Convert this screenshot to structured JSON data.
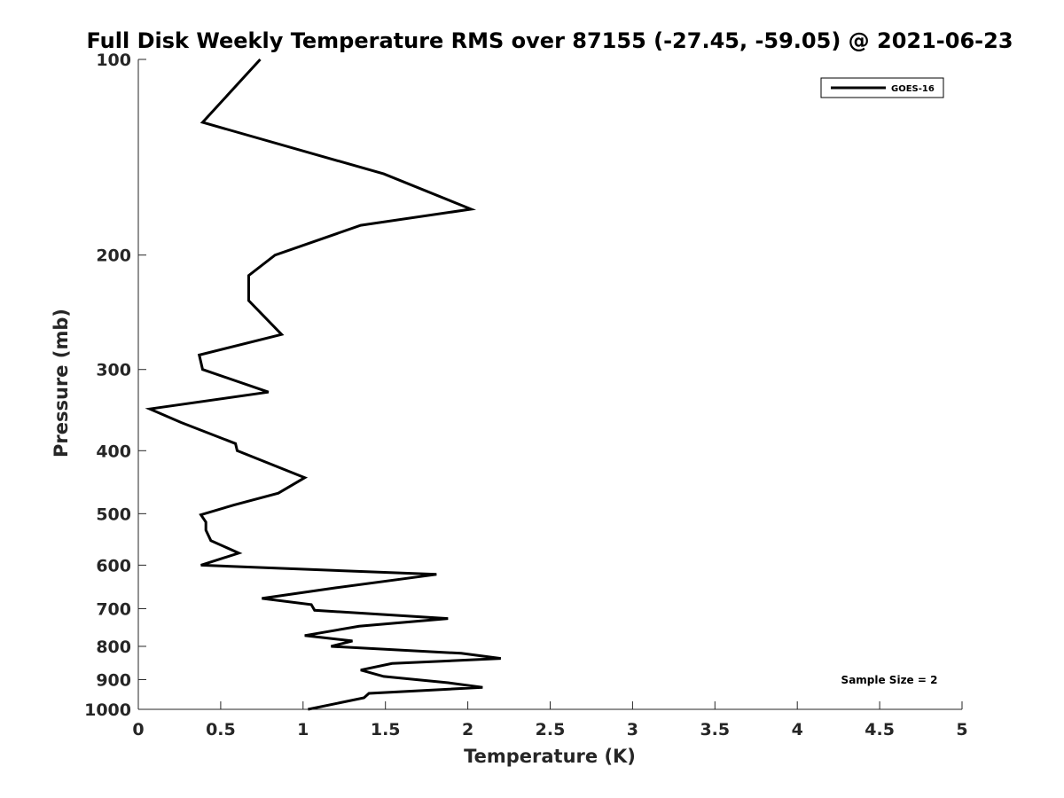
{
  "chart_data": {
    "type": "line",
    "title": "Full Disk Weekly Temperature RMS over 87155 (-27.45, -59.05) @ 2021-06-23",
    "xlabel": "Temperature (K)",
    "ylabel": "Pressure (mb)",
    "xlim": [
      0,
      5
    ],
    "ylim": [
      100,
      1000
    ],
    "y_scale": "log",
    "y_reversed": true,
    "x_ticks": [
      0,
      0.5,
      1,
      1.5,
      2,
      2.5,
      3,
      3.5,
      4,
      4.5,
      5
    ],
    "x_tick_labels": [
      "0",
      "0.5",
      "1",
      "1.5",
      "2",
      "2.5",
      "3",
      "3.5",
      "4",
      "4.5",
      "5"
    ],
    "y_ticks": [
      100,
      200,
      300,
      400,
      500,
      600,
      700,
      800,
      900,
      1000
    ],
    "y_tick_labels": [
      "100",
      "200",
      "300",
      "400",
      "500",
      "600",
      "700",
      "800",
      "900",
      "1000"
    ],
    "legend_position": "top-right",
    "annotation": "Sample Size = 2",
    "line_color": "#000000",
    "series": [
      {
        "name": "GOES-16",
        "points": [
          [
            0.74,
            100
          ],
          [
            0.39,
            125
          ],
          [
            1.49,
            150
          ],
          [
            2.02,
            170
          ],
          [
            1.35,
            180
          ],
          [
            0.83,
            200
          ],
          [
            0.67,
            215
          ],
          [
            0.67,
            235
          ],
          [
            0.87,
            265
          ],
          [
            0.37,
            285
          ],
          [
            0.39,
            300
          ],
          [
            0.79,
            325
          ],
          [
            0.07,
            345
          ],
          [
            0.26,
            362
          ],
          [
            0.59,
            390
          ],
          [
            0.6,
            400
          ],
          [
            1.01,
            440
          ],
          [
            0.85,
            465
          ],
          [
            0.58,
            485
          ],
          [
            0.38,
            502
          ],
          [
            0.41,
            515
          ],
          [
            0.41,
            530
          ],
          [
            0.44,
            550
          ],
          [
            0.61,
            575
          ],
          [
            0.38,
            600
          ],
          [
            1.81,
            620
          ],
          [
            1.2,
            650
          ],
          [
            0.75,
            675
          ],
          [
            1.05,
            690
          ],
          [
            1.07,
            704
          ],
          [
            1.88,
            725
          ],
          [
            1.34,
            745
          ],
          [
            1.01,
            770
          ],
          [
            1.3,
            785
          ],
          [
            1.17,
            800
          ],
          [
            1.96,
            820
          ],
          [
            2.2,
            835
          ],
          [
            1.54,
            850
          ],
          [
            1.35,
            870
          ],
          [
            1.49,
            890
          ],
          [
            1.88,
            910
          ],
          [
            2.09,
            925
          ],
          [
            1.4,
            945
          ],
          [
            1.37,
            960
          ],
          [
            1.03,
            1000
          ]
        ]
      }
    ]
  }
}
